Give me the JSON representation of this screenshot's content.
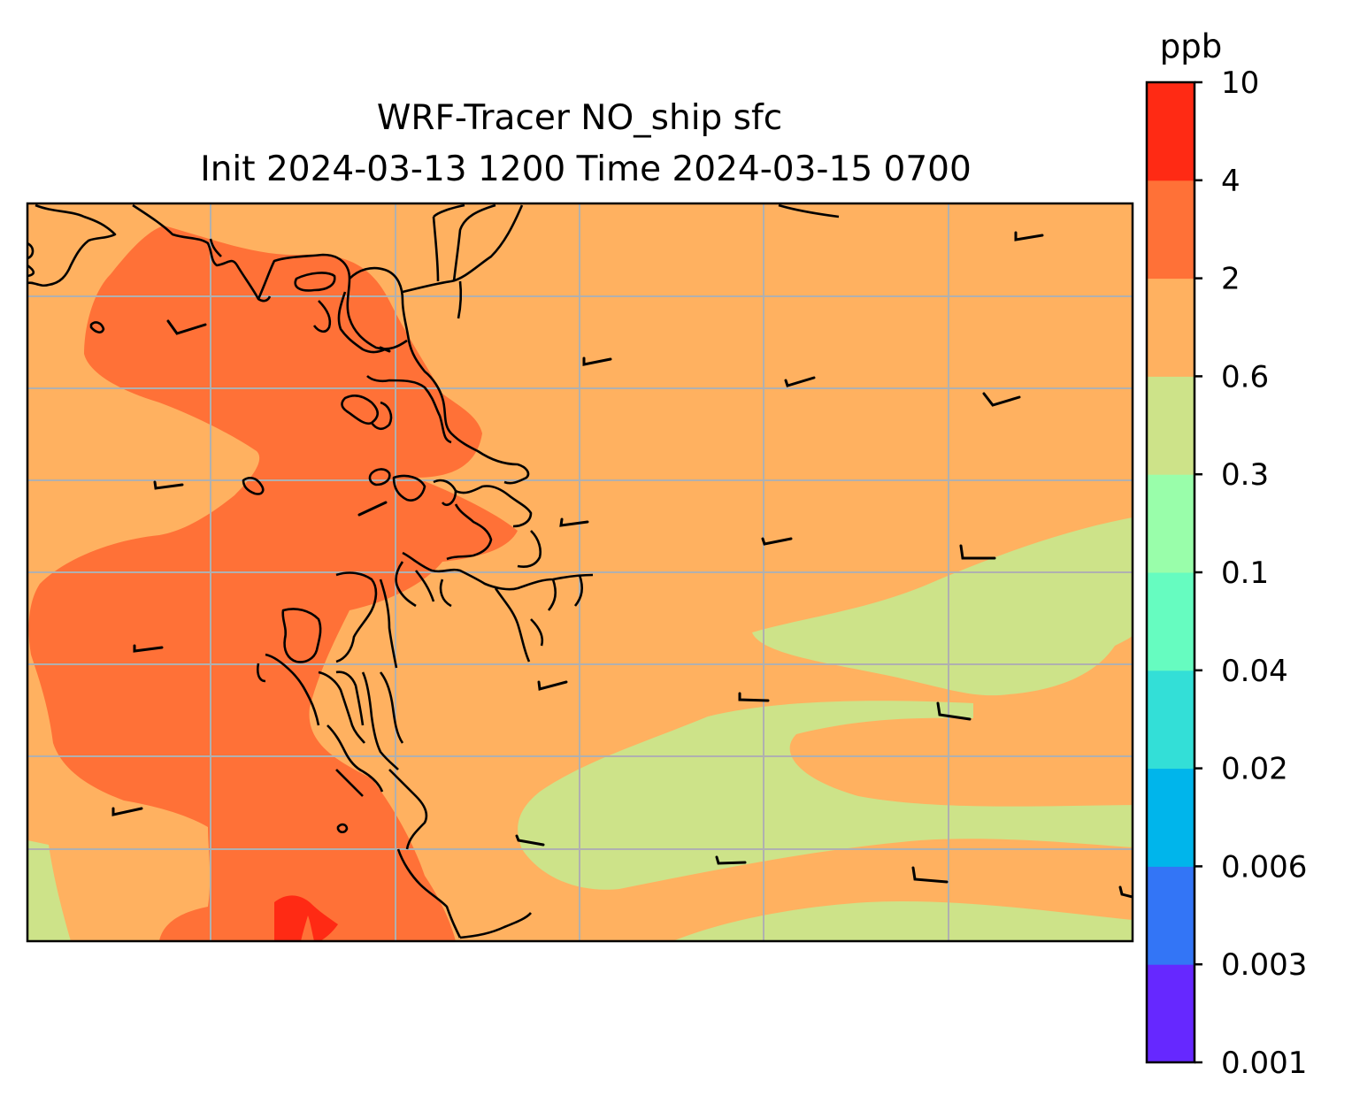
{
  "figure": {
    "title_line1": "WRF-Tracer NO_ship sfc",
    "title_line2": "Init 2024-03-13 1200 Time 2024-03-15 0700"
  },
  "colorbar": {
    "unit": "ppb",
    "levels": [
      "0.001",
      "0.003",
      "0.006",
      "0.02",
      "0.04",
      "0.1",
      "0.3",
      "0.6",
      "2",
      "4",
      "10"
    ],
    "colors": [
      "#6628ff",
      "#3375f6",
      "#00b5eb",
      "#33dfd7",
      "#66fcc0",
      "#99feaa",
      "#cde389",
      "#ffb160",
      "#ff7137",
      "#ff2a14"
    ]
  },
  "map_colors": {
    "bin_0_6_to_2": "#ffb160",
    "bin_2_to_4": "#ff7137",
    "bin_4_to_10": "#ff2a14",
    "bin_0_3_to_0_6": "#cde389",
    "gridlines": "#b0b0b0",
    "coastline": "#000000"
  },
  "map_layers": [
    "filled-contours",
    "coastline",
    "gridlines",
    "wind-barbs"
  ]
}
